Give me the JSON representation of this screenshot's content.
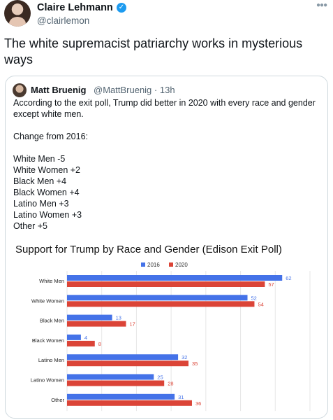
{
  "tweet": {
    "author_name": "Claire Lehmann",
    "author_handle": "@clairlemon",
    "text": "The white supremacist patriarchy works in mysterious ways"
  },
  "quoted": {
    "author_name": "Matt Bruenig",
    "author_handle": "@MattBruenig",
    "time": "13h",
    "lines": [
      "According to the exit poll, Trump did better in 2020 with every race and gender except white men.",
      "",
      "Change from 2016:",
      "",
      "White Men -5",
      "White Women +2",
      "Black Men +4",
      "Black Women +4",
      "Latino Men +3",
      "Latino Women +3",
      "Other +5"
    ]
  },
  "colors": {
    "verified": "#1d9bf0",
    "series_2016": "#4472e8",
    "series_2020": "#db4437"
  },
  "chart_data": {
    "type": "bar",
    "orientation": "horizontal",
    "title": "Support for Trump by Race and Gender (Edison Exit Poll)",
    "categories": [
      "White Men",
      "White Women",
      "Black Men",
      "Black Women",
      "Latino Men",
      "Latino Women",
      "Other"
    ],
    "series": [
      {
        "name": "2016",
        "color": "#4472e8",
        "values": [
          62,
          52,
          13,
          4,
          32,
          25,
          31
        ]
      },
      {
        "name": "2020",
        "color": "#db4437",
        "values": [
          57,
          54,
          17,
          8,
          35,
          28,
          36
        ]
      }
    ],
    "xlim": [
      0,
      70
    ],
    "grid": true,
    "legend": "top-center"
  }
}
